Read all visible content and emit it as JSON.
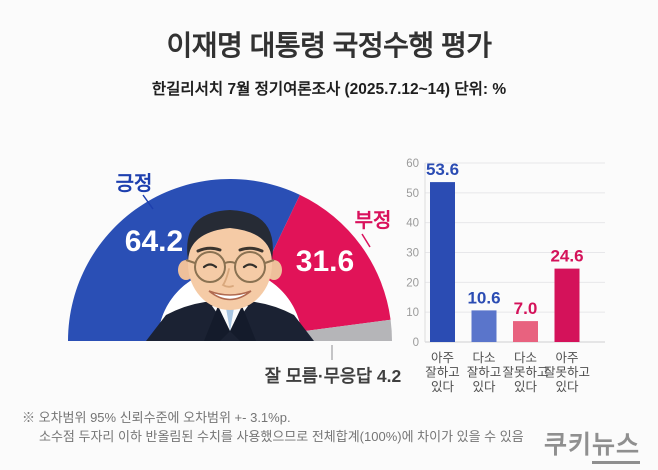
{
  "header": {
    "title": "이재명 대통령 국정수행 평가",
    "subtitle": "한길리서치 7월 정기여론조사 (2025.7.12~14) 단위: %"
  },
  "chart_data": [
    {
      "type": "pie",
      "variant": "semicircle-donut-gauge",
      "title": "이재명 대통령 국정수행 평가",
      "labels": [
        "긍정",
        "부정",
        "잘 모름·무응답"
      ],
      "values": [
        64.2,
        31.6,
        4.2
      ],
      "colors": [
        "#2a4fb5",
        "#e11358",
        "#b5b5b8"
      ],
      "label_colors": [
        "#1d3fae",
        "#d9115c",
        "#3f3f3f"
      ],
      "unit": "%"
    },
    {
      "type": "bar",
      "categories": [
        "아주 잘하고 있다",
        "다소 잘하고 있다",
        "다소 잘못하고 있다",
        "아주 잘못하고 있다"
      ],
      "values": [
        53.6,
        10.6,
        7.0,
        24.6
      ],
      "bar_colors": [
        "#2b4cb3",
        "#5a75cb",
        "#e8627f",
        "#d4125a"
      ],
      "value_label_colors": [
        "#2b4cb3",
        "#2b4cb3",
        "#d4125a",
        "#d4125a"
      ],
      "ylim": [
        0,
        60
      ],
      "ytick_step": 10,
      "grid": true,
      "legend": "none",
      "unit": "%"
    }
  ],
  "footnote": {
    "line1": "※ 오차범위 95% 신뢰수준에 오차범위 +- 3.1%p.",
    "line2": "소수점 두자리 이하 반올림된 수치를 사용했으므로 전체합계(100%)에 차이가 있을 수 있음"
  },
  "logo": {
    "part1": "쿠키",
    "part2": "뉴스"
  }
}
